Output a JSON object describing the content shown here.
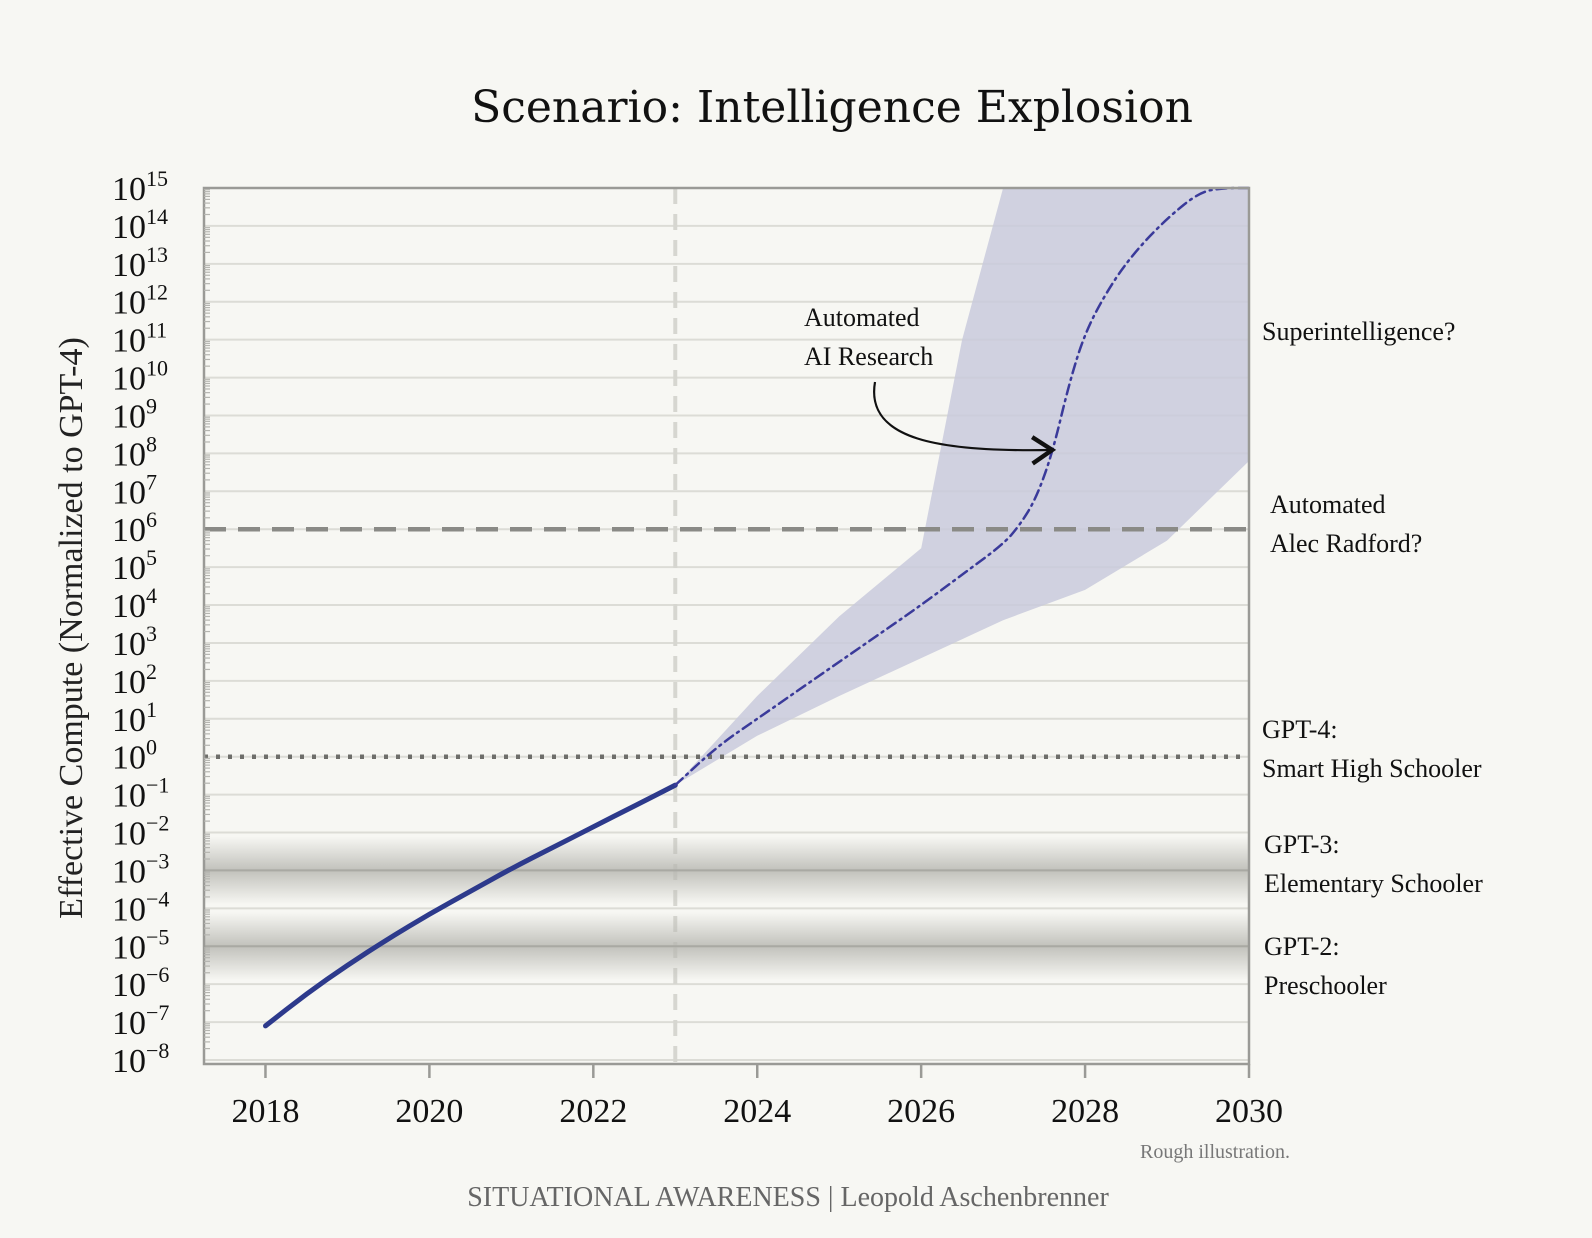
{
  "chart_data": {
    "type": "line",
    "title": "Scenario: Intelligence Explosion",
    "ylabel": "Effective Compute (Normalized to GPT-4)",
    "xlabel": "",
    "x_ticks": [
      "2018",
      "2020",
      "2022",
      "2024",
      "2026",
      "2028",
      "2030"
    ],
    "xlim": [
      2017.25,
      2030
    ],
    "y_scale": "log",
    "ylim_exponent": [
      -8,
      15
    ],
    "y_tick_exponents": [
      15,
      14,
      13,
      12,
      11,
      10,
      9,
      8,
      7,
      6,
      5,
      4,
      3,
      2,
      1,
      0,
      -1,
      -2,
      -3,
      -4,
      -5,
      -6,
      -7,
      -8
    ],
    "grid": true,
    "series": [
      {
        "style": "solid",
        "color": "#2d3a8c",
        "x": [
          2018.0,
          2018.5,
          2019.0,
          2019.5,
          2020.0,
          2020.5,
          2021.0,
          2021.5,
          2022.0,
          2022.5,
          2023.0
        ],
        "y_exponent": [
          -7.1,
          -6.25,
          -5.5,
          -4.8,
          -4.15,
          -3.55,
          -2.95,
          -2.4,
          -1.85,
          -1.3,
          -0.75
        ]
      },
      {
        "style": "dash-dot",
        "color": "#3a3a9a",
        "x": [
          2023.0,
          2023.5,
          2024.0,
          2024.5,
          2025.0,
          2025.5,
          2026.0,
          2026.5,
          2027.0,
          2027.2,
          2027.4,
          2027.6,
          2027.8,
          2028.0,
          2028.3,
          2028.6,
          2029.0,
          2029.4,
          2029.7,
          2030.0
        ],
        "y_exponent": [
          -0.75,
          0.25,
          1.0,
          1.75,
          2.5,
          3.25,
          4.0,
          4.8,
          5.6,
          6.1,
          6.8,
          8.0,
          9.8,
          11.2,
          12.4,
          13.3,
          14.2,
          14.9,
          15.3,
          15.6
        ]
      }
    ],
    "band": {
      "color": "#c9cadc",
      "x": [
        2023.0,
        2024.0,
        2025.0,
        2026.0,
        2026.5,
        2027.0,
        2028.0,
        2029.0,
        2030.0
      ],
      "upper_exponent": [
        -0.75,
        1.6,
        3.7,
        5.5,
        11.0,
        15.8,
        15.8,
        15.8,
        15.8
      ],
      "lower_exponent": [
        -0.75,
        0.55,
        1.6,
        2.6,
        3.1,
        3.6,
        4.4,
        5.7,
        7.8
      ]
    },
    "reference_lines": [
      {
        "exponent": 6,
        "style": "dashed",
        "label": [
          "Automated",
          "Alec Radford?"
        ]
      },
      {
        "exponent": 0,
        "style": "dotted",
        "label": [
          "GPT-4:",
          "Smart High Schooler"
        ]
      },
      {
        "exponent": -3,
        "style": "shaded",
        "label": [
          "GPT-3:",
          "Elementary Schooler"
        ]
      },
      {
        "exponent": -5,
        "style": "shaded",
        "label": [
          "GPT-2:",
          "Preschooler"
        ]
      },
      {
        "exponent": 11,
        "style": "none",
        "label": [
          "Superintelligence?"
        ]
      }
    ],
    "vertical_line_x": 2023,
    "annotation": [
      "Automated",
      "AI Research"
    ]
  },
  "footer": {
    "note": "Rough illustration.",
    "credit": "SITUATIONAL AWARENESS | Leopold Aschenbrenner"
  }
}
